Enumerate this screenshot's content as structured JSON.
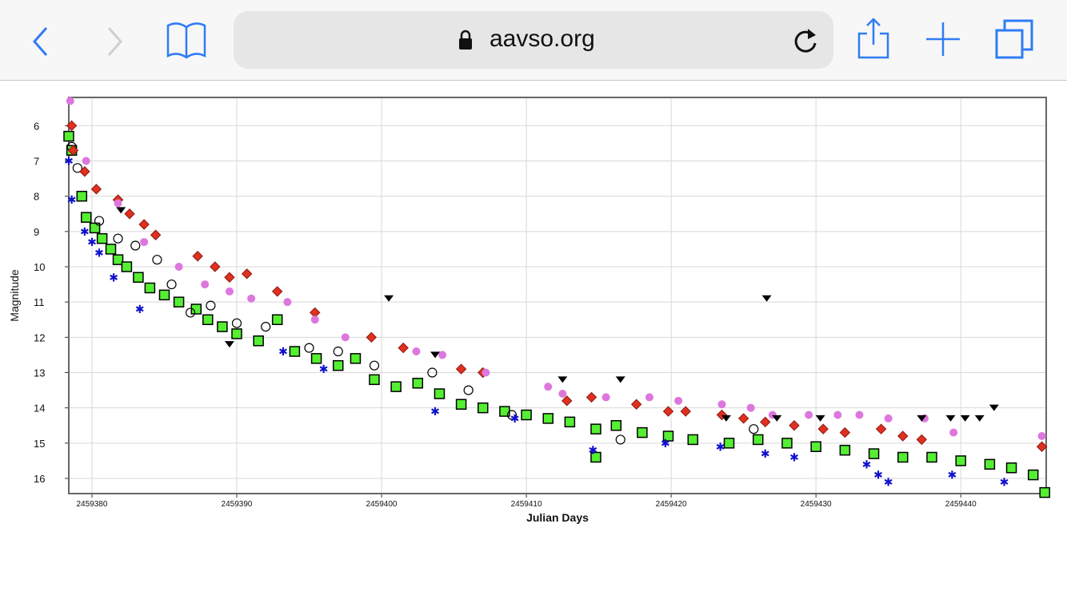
{
  "browser": {
    "url": "aavso.org",
    "icons": [
      "back-icon",
      "forward-icon",
      "bookmarks-icon",
      "lock-icon",
      "reload-icon",
      "share-icon",
      "new-tab-icon",
      "tabs-icon"
    ]
  },
  "chart_data": {
    "type": "scatter",
    "title": "",
    "xlabel": "Julian Days",
    "ylabel": "Magnitude",
    "x_base": 2459000,
    "xlim": [
      2459378.4,
      2459445.9
    ],
    "ylim": [
      16.43,
      5.2
    ],
    "y_inverted": true,
    "grid": true,
    "x_ticks": [
      "2459380",
      "2459390",
      "2459400",
      "2459410",
      "2459420",
      "2459430",
      "2459440"
    ],
    "x_tick_values": [
      2459380,
      2459390,
      2459400,
      2459410,
      2459420,
      2459430,
      2459440
    ],
    "y_ticks": [
      "6",
      "7",
      "8",
      "9",
      "10",
      "11",
      "12",
      "13",
      "14",
      "15",
      "16"
    ],
    "y_tick_values": [
      6,
      7,
      8,
      9,
      10,
      11,
      12,
      13,
      14,
      15,
      16
    ],
    "series": [
      {
        "name": "green-squares",
        "marker": "square",
        "color": "#55ee33",
        "points": [
          [
            378.4,
            6.3
          ],
          [
            378.6,
            6.7
          ],
          [
            379.3,
            8.0
          ],
          [
            379.6,
            8.6
          ],
          [
            380.2,
            8.9
          ],
          [
            380.7,
            9.2
          ],
          [
            381.3,
            9.5
          ],
          [
            381.8,
            9.8
          ],
          [
            382.4,
            10.0
          ],
          [
            383.2,
            10.3
          ],
          [
            384.0,
            10.6
          ],
          [
            385.0,
            10.8
          ],
          [
            386.0,
            11.0
          ],
          [
            387.2,
            11.2
          ],
          [
            388.0,
            11.5
          ],
          [
            389.0,
            11.7
          ],
          [
            390.0,
            11.9
          ],
          [
            391.5,
            12.1
          ],
          [
            392.8,
            11.5
          ],
          [
            394.0,
            12.4
          ],
          [
            395.5,
            12.6
          ],
          [
            397.0,
            12.8
          ],
          [
            398.2,
            12.6
          ],
          [
            399.5,
            13.2
          ],
          [
            401.0,
            13.4
          ],
          [
            402.5,
            13.3
          ],
          [
            404.0,
            13.6
          ],
          [
            405.5,
            13.9
          ],
          [
            407.0,
            14.0
          ],
          [
            408.5,
            14.1
          ],
          [
            410.0,
            14.2
          ],
          [
            411.5,
            14.3
          ],
          [
            413.0,
            14.4
          ],
          [
            414.8,
            14.6
          ],
          [
            414.8,
            15.4
          ],
          [
            416.2,
            14.5
          ],
          [
            418.0,
            14.7
          ],
          [
            419.8,
            14.8
          ],
          [
            421.5,
            14.9
          ],
          [
            424.0,
            15.0
          ],
          [
            426.0,
            14.9
          ],
          [
            428.0,
            15.0
          ],
          [
            430.0,
            15.1
          ],
          [
            432.0,
            15.2
          ],
          [
            434.0,
            15.3
          ],
          [
            436.0,
            15.4
          ],
          [
            438.0,
            15.4
          ],
          [
            440.0,
            15.5
          ],
          [
            442.0,
            15.6
          ],
          [
            443.5,
            15.7
          ],
          [
            445.0,
            15.9
          ],
          [
            445.8,
            16.4
          ]
        ]
      },
      {
        "name": "black-circles",
        "marker": "circle-open",
        "color": "#000000",
        "points": [
          [
            378.6,
            6.6
          ],
          [
            379.0,
            7.2
          ],
          [
            380.5,
            8.7
          ],
          [
            381.8,
            9.2
          ],
          [
            383.0,
            9.4
          ],
          [
            384.5,
            9.8
          ],
          [
            385.5,
            10.5
          ],
          [
            386.8,
            11.3
          ],
          [
            388.2,
            11.1
          ],
          [
            390.0,
            11.6
          ],
          [
            392.0,
            11.7
          ],
          [
            395.0,
            12.3
          ],
          [
            397.0,
            12.4
          ],
          [
            399.5,
            12.8
          ],
          [
            403.5,
            13.0
          ],
          [
            406.0,
            13.5
          ],
          [
            409.0,
            14.2
          ],
          [
            416.5,
            14.9
          ],
          [
            425.7,
            14.6
          ]
        ]
      },
      {
        "name": "blue-stars",
        "marker": "star",
        "color": "#1010cc",
        "points": [
          [
            378.4,
            7.0
          ],
          [
            378.6,
            8.1
          ],
          [
            379.5,
            9.0
          ],
          [
            380.0,
            9.3
          ],
          [
            380.5,
            9.6
          ],
          [
            381.5,
            10.3
          ],
          [
            383.3,
            11.2
          ],
          [
            393.2,
            12.4
          ],
          [
            396.0,
            12.9
          ],
          [
            403.7,
            14.1
          ],
          [
            409.2,
            14.3
          ],
          [
            414.6,
            15.2
          ],
          [
            419.6,
            15.0
          ],
          [
            423.4,
            15.1
          ],
          [
            426.5,
            15.3
          ],
          [
            428.5,
            15.4
          ],
          [
            433.5,
            15.6
          ],
          [
            434.3,
            15.9
          ],
          [
            435.0,
            16.1
          ],
          [
            439.4,
            15.9
          ],
          [
            443.0,
            16.1
          ]
        ]
      },
      {
        "name": "red-diamonds",
        "marker": "diamond",
        "color": "#e03020",
        "points": [
          [
            378.6,
            6.0
          ],
          [
            378.7,
            6.7
          ],
          [
            379.5,
            7.3
          ],
          [
            380.3,
            7.8
          ],
          [
            381.8,
            8.1
          ],
          [
            382.6,
            8.5
          ],
          [
            383.6,
            8.8
          ],
          [
            384.4,
            9.1
          ],
          [
            387.3,
            9.7
          ],
          [
            388.5,
            10.0
          ],
          [
            389.5,
            10.3
          ],
          [
            390.7,
            10.2
          ],
          [
            392.8,
            10.7
          ],
          [
            395.4,
            11.3
          ],
          [
            399.3,
            12.0
          ],
          [
            401.5,
            12.3
          ],
          [
            405.5,
            12.9
          ],
          [
            407.0,
            13.0
          ],
          [
            412.8,
            13.8
          ],
          [
            414.5,
            13.7
          ],
          [
            417.6,
            13.9
          ],
          [
            419.8,
            14.1
          ],
          [
            421.0,
            14.1
          ],
          [
            423.5,
            14.2
          ],
          [
            425.0,
            14.3
          ],
          [
            426.5,
            14.4
          ],
          [
            428.5,
            14.5
          ],
          [
            430.5,
            14.6
          ],
          [
            432.0,
            14.7
          ],
          [
            434.5,
            14.6
          ],
          [
            436.0,
            14.8
          ],
          [
            437.3,
            14.9
          ],
          [
            445.6,
            15.1
          ]
        ]
      },
      {
        "name": "pink-hexagons",
        "marker": "hexagon",
        "color": "#dd77dd",
        "points": [
          [
            378.5,
            5.3
          ],
          [
            379.6,
            7.0
          ],
          [
            381.8,
            8.2
          ],
          [
            383.6,
            9.3
          ],
          [
            386.0,
            10.0
          ],
          [
            387.8,
            10.5
          ],
          [
            389.5,
            10.7
          ],
          [
            391.0,
            10.9
          ],
          [
            393.5,
            11.0
          ],
          [
            395.4,
            11.5
          ],
          [
            397.5,
            12.0
          ],
          [
            402.4,
            12.4
          ],
          [
            404.2,
            12.5
          ],
          [
            407.2,
            13.0
          ],
          [
            411.5,
            13.4
          ],
          [
            412.5,
            13.6
          ],
          [
            415.5,
            13.7
          ],
          [
            418.5,
            13.7
          ],
          [
            420.5,
            13.8
          ],
          [
            423.5,
            13.9
          ],
          [
            425.5,
            14.0
          ],
          [
            427.0,
            14.2
          ],
          [
            429.5,
            14.2
          ],
          [
            431.5,
            14.2
          ],
          [
            433.0,
            14.2
          ],
          [
            435.0,
            14.3
          ],
          [
            437.5,
            14.3
          ],
          [
            439.5,
            14.7
          ],
          [
            445.6,
            14.8
          ]
        ]
      },
      {
        "name": "fainter-than-triangles",
        "marker": "triangle-down",
        "color": "#000000",
        "points": [
          [
            382.0,
            8.4
          ],
          [
            389.5,
            12.2
          ],
          [
            400.5,
            10.9
          ],
          [
            403.7,
            12.5
          ],
          [
            412.5,
            13.2
          ],
          [
            416.5,
            13.2
          ],
          [
            423.8,
            14.3
          ],
          [
            426.6,
            10.9
          ],
          [
            427.3,
            14.3
          ],
          [
            430.3,
            14.3
          ],
          [
            437.3,
            14.3
          ],
          [
            439.3,
            14.3
          ],
          [
            440.3,
            14.3
          ],
          [
            441.3,
            14.3
          ],
          [
            442.3,
            14.0
          ]
        ]
      }
    ]
  }
}
